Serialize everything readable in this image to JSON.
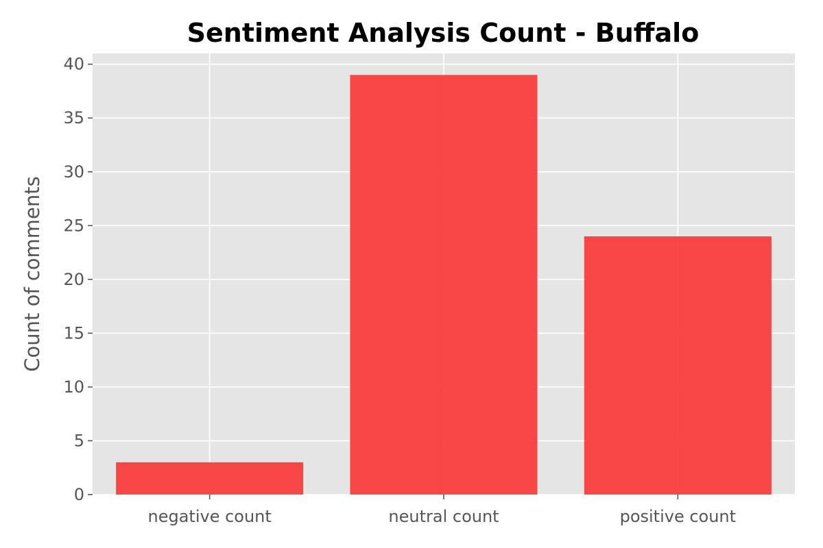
{
  "chart_data": {
    "type": "bar",
    "title": "Sentiment Analysis Count - Buffalo",
    "xlabel": "",
    "ylabel": "Count of comments",
    "categories": [
      "negative count",
      "neutral count",
      "positive count"
    ],
    "values": [
      3,
      39,
      24
    ],
    "ylim": [
      0,
      41
    ],
    "yticks": [
      0,
      5,
      10,
      15,
      20,
      25,
      30,
      35,
      40
    ],
    "grid": true,
    "bar_color": "#f83838",
    "plot_background": "#e5e5e5"
  }
}
